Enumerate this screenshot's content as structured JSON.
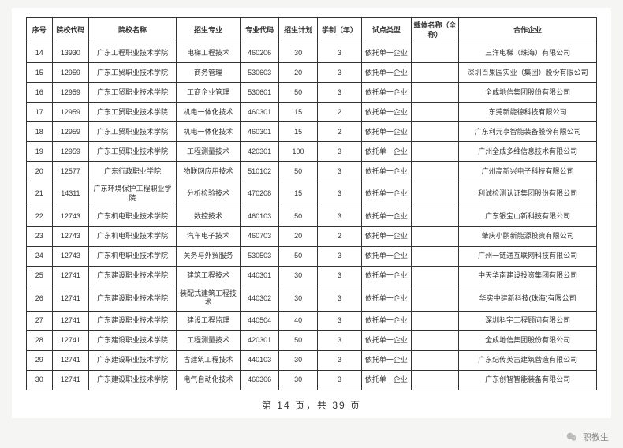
{
  "headers": [
    "序号",
    "院校代码",
    "院校名称",
    "招生专业",
    "专业代码",
    "招生计划",
    "学制（年）",
    "试点类型",
    "载体名称（全称）",
    "合作企业"
  ],
  "rows": [
    [
      "14",
      "13930",
      "广东工程职业技术学院",
      "电梯工程技术",
      "460206",
      "30",
      "3",
      "依托单一企业",
      "",
      "三洋电梯（珠海）有限公司"
    ],
    [
      "15",
      "12959",
      "广东工贸职业技术学院",
      "商务管理",
      "530603",
      "20",
      "3",
      "依托单一企业",
      "",
      "深圳百果园实业（集团）股份有限公司"
    ],
    [
      "16",
      "12959",
      "广东工贸职业技术学院",
      "工商企业管理",
      "530601",
      "50",
      "3",
      "依托单一企业",
      "",
      "全成地信集团股份有限公司"
    ],
    [
      "17",
      "12959",
      "广东工贸职业技术学院",
      "机电一体化技术",
      "460301",
      "15",
      "2",
      "依托单一企业",
      "",
      "东莞新能德科技有限公司"
    ],
    [
      "18",
      "12959",
      "广东工贸职业技术学院",
      "机电一体化技术",
      "460301",
      "15",
      "2",
      "依托单一企业",
      "",
      "广东利元亨智能装备股份有限公司"
    ],
    [
      "19",
      "12959",
      "广东工贸职业技术学院",
      "工程测量技术",
      "420301",
      "100",
      "3",
      "依托单一企业",
      "",
      "广州全成多维信息技术有限公司"
    ],
    [
      "20",
      "12577",
      "广东行政职业学院",
      "物联网应用技术",
      "510102",
      "50",
      "3",
      "依托单一企业",
      "",
      "广州高新兴电子科技有限公司"
    ],
    [
      "21",
      "14311",
      "广东环境保护工程职业学院",
      "分析检验技术",
      "470208",
      "15",
      "3",
      "依托单一企业",
      "",
      "利诚检测认证集团股份有限公司"
    ],
    [
      "22",
      "12743",
      "广东机电职业技术学院",
      "数控技术",
      "460103",
      "50",
      "3",
      "依托单一企业",
      "",
      "广东银宝山新科技有限公司"
    ],
    [
      "23",
      "12743",
      "广东机电职业技术学院",
      "汽车电子技术",
      "460703",
      "20",
      "2",
      "依托单一企业",
      "",
      "肇庆小鹏新能源投资有限公司"
    ],
    [
      "24",
      "12743",
      "广东机电职业技术学院",
      "关务与外贸服务",
      "530503",
      "50",
      "3",
      "依托单一企业",
      "",
      "广州一链通互联网科技有限公司"
    ],
    [
      "25",
      "12741",
      "广东建设职业技术学院",
      "建筑工程技术",
      "440301",
      "30",
      "3",
      "依托单一企业",
      "",
      "中天华南建设投资集团有限公司"
    ],
    [
      "26",
      "12741",
      "广东建设职业技术学院",
      "装配式建筑工程技术",
      "440302",
      "30",
      "3",
      "依托单一企业",
      "",
      "华实中建新科技(珠海)有限公司"
    ],
    [
      "27",
      "12741",
      "广东建设职业技术学院",
      "建设工程监理",
      "440504",
      "40",
      "3",
      "依托单一企业",
      "",
      "深圳科宇工程顾问有限公司"
    ],
    [
      "28",
      "12741",
      "广东建设职业技术学院",
      "工程测量技术",
      "420301",
      "50",
      "3",
      "依托单一企业",
      "",
      "全成地信集团股份有限公司"
    ],
    [
      "29",
      "12741",
      "广东建设职业技术学院",
      "古建筑工程技术",
      "440103",
      "30",
      "3",
      "依托单一企业",
      "",
      "广东纪传英古建筑营造有限公司"
    ],
    [
      "30",
      "12741",
      "广东建设职业技术学院",
      "电气自动化技术",
      "460306",
      "30",
      "3",
      "依托单一企业",
      "",
      "广东创智智能装备有限公司"
    ]
  ],
  "pager": "第 14 页，共 39 页",
  "footer_label": "职教生"
}
